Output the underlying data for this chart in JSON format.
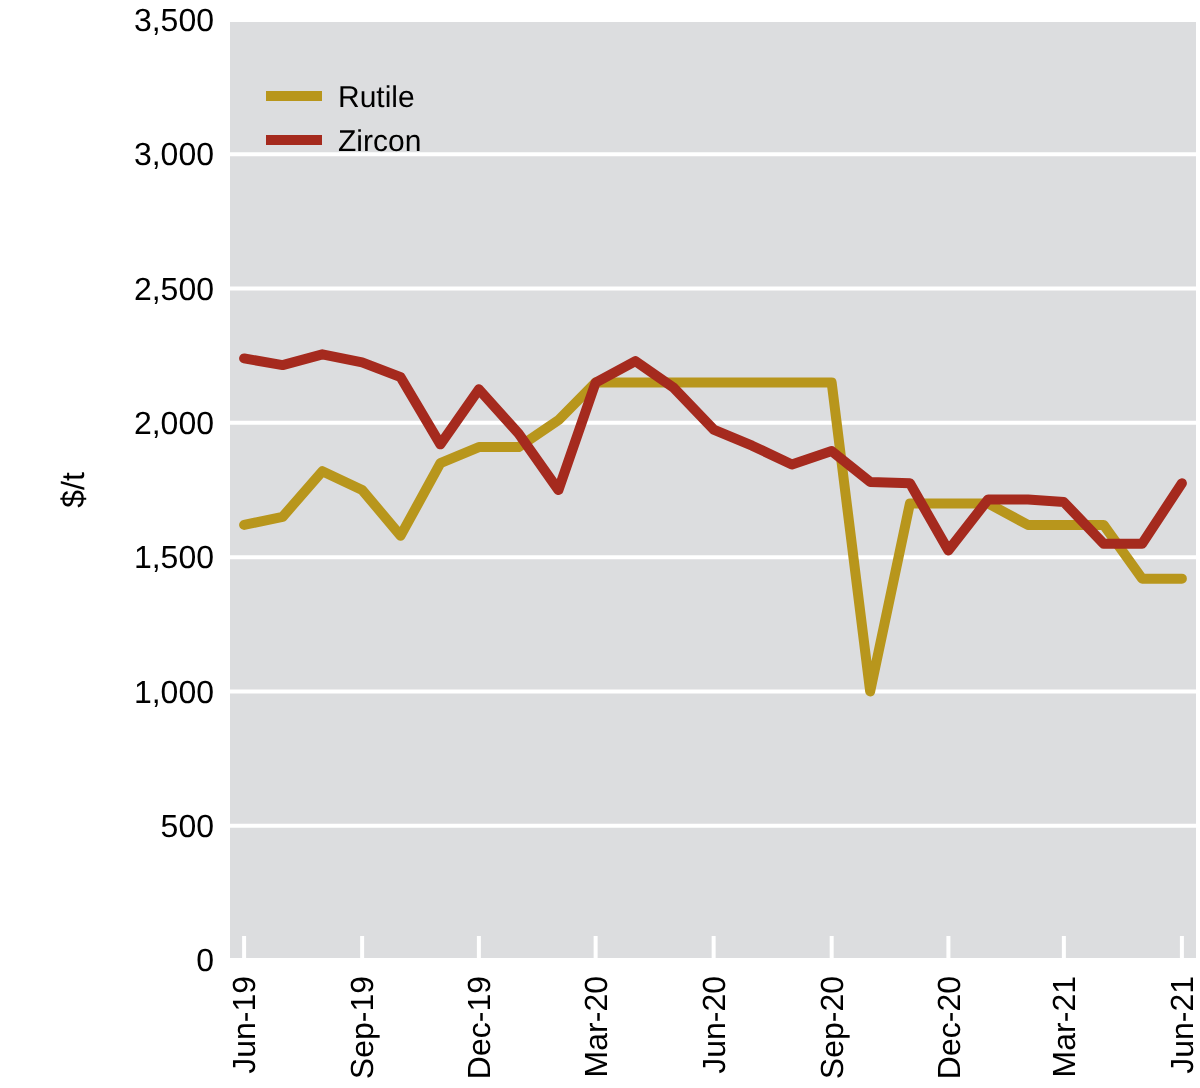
{
  "chart_data": {
    "type": "line",
    "ylabel": "$/t",
    "x": [
      "2019-06",
      "2019-07",
      "2019-08",
      "2019-09",
      "2019-10",
      "2019-11",
      "2019-12",
      "2020-01",
      "2020-02",
      "2020-03",
      "2020-04",
      "2020-05",
      "2020-06",
      "2020-07",
      "2020-08",
      "2020-09",
      "2020-10",
      "2020-11",
      "2020-12",
      "2021-01",
      "2021-02",
      "2021-03",
      "2021-04",
      "2021-05",
      "2021-06"
    ],
    "series": [
      {
        "name": "Rutile",
        "color": "#b8961c",
        "values": [
          1620,
          1650,
          1820,
          1750,
          1580,
          1850,
          1910,
          1910,
          2010,
          2150,
          2150,
          2150,
          2150,
          2150,
          2150,
          2150,
          1000,
          1700,
          1700,
          1700,
          1620,
          1620,
          1620,
          1420,
          1420
        ]
      },
      {
        "name": "Zircon",
        "color": "#a52a1e",
        "values": [
          2240,
          2215,
          2255,
          2225,
          2170,
          1920,
          2125,
          1960,
          1750,
          2150,
          2230,
          2130,
          1975,
          1915,
          1845,
          1895,
          1780,
          1775,
          1525,
          1715,
          1715,
          1705,
          1550,
          1550,
          1775
        ]
      }
    ],
    "xlim": [
      "2019-05-21",
      "2021-06-12"
    ],
    "xticks": [
      {
        "value": "2019-06",
        "label": "Jun-19"
      },
      {
        "value": "2019-09",
        "label": "Sep-19"
      },
      {
        "value": "2019-12",
        "label": "Dec-19"
      },
      {
        "value": "2020-03",
        "label": "Mar-20"
      },
      {
        "value": "2020-06",
        "label": "Jun-20"
      },
      {
        "value": "2020-09",
        "label": "Sep-20"
      },
      {
        "value": "2020-12",
        "label": "Dec-20"
      },
      {
        "value": "2021-03",
        "label": "Mar-21"
      },
      {
        "value": "2021-06",
        "label": "Jun-21"
      }
    ],
    "ylim": [
      0,
      3500
    ],
    "yticks": [
      {
        "value": 0,
        "label": "0"
      },
      {
        "value": 500,
        "label": "500"
      },
      {
        "value": 1000,
        "label": "1,000"
      },
      {
        "value": 1500,
        "label": "1,500"
      },
      {
        "value": 2000,
        "label": "2,000"
      },
      {
        "value": 2500,
        "label": "2,500"
      },
      {
        "value": 3000,
        "label": "3,000"
      },
      {
        "value": 3500,
        "label": "3,500"
      }
    ],
    "grid": "y",
    "legend": "top left",
    "marker": "none",
    "line_style": "solid"
  }
}
